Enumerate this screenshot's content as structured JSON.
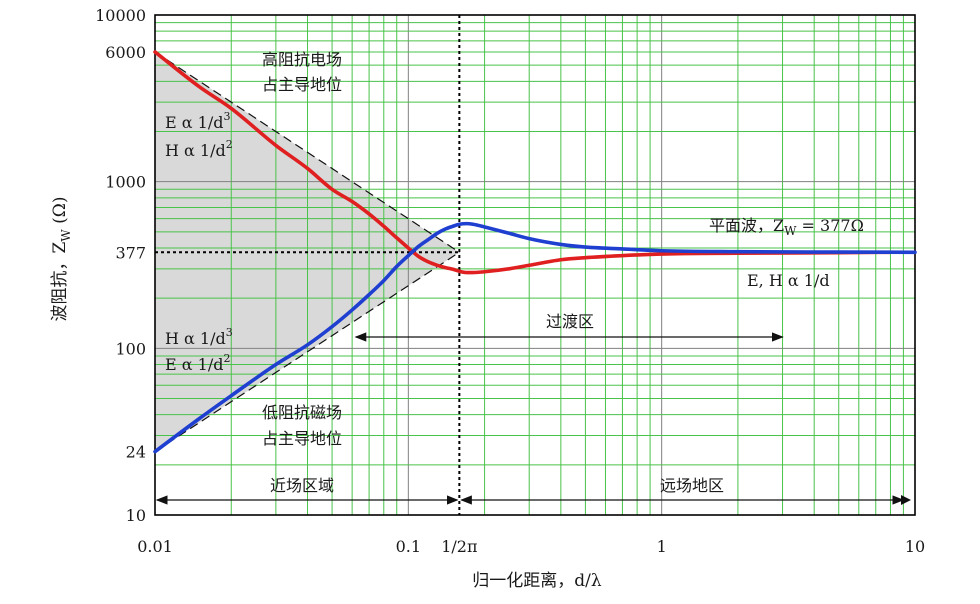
{
  "chart_data": {
    "type": "line",
    "x_scale": "log",
    "y_scale": "log",
    "xlim": [
      0.01,
      10
    ],
    "ylim": [
      10,
      10000
    ],
    "grid": true,
    "xlabel": "归一化距离，d/λ",
    "ylabel_main": "波阻抗，Z",
    "ylabel_sub": "W",
    "ylabel_tail": " (Ω)",
    "x_ticks": [
      {
        "value": 0.01,
        "label": "0.01"
      },
      {
        "value": 0.1,
        "label": "0.1"
      },
      {
        "value": 0.159,
        "label": "1/2π"
      },
      {
        "value": 1,
        "label": "1"
      },
      {
        "value": 10,
        "label": "10"
      }
    ],
    "y_ticks": [
      {
        "value": 10,
        "label": "10"
      },
      {
        "value": 24,
        "label": "24"
      },
      {
        "value": 100,
        "label": "100"
      },
      {
        "value": 377,
        "label": "377"
      },
      {
        "value": 1000,
        "label": "1000"
      },
      {
        "value": 6000,
        "label": "6000"
      },
      {
        "value": 10000,
        "label": "10000"
      }
    ],
    "series": [
      {
        "color": "#e02020",
        "x": [
          0.01,
          0.015,
          0.02,
          0.03,
          0.04,
          0.05,
          0.06,
          0.07,
          0.08,
          0.09,
          0.1,
          0.11,
          0.12,
          0.13,
          0.14,
          0.15,
          0.159,
          0.17,
          0.18,
          0.2,
          0.25,
          0.3,
          0.4,
          0.5,
          0.7,
          1,
          2,
          5,
          8
        ],
        "values": [
          6000,
          3700,
          2750,
          1650,
          1200,
          900,
          760,
          640,
          540,
          460,
          400,
          355,
          330,
          315,
          305,
          298,
          290,
          285,
          285,
          288,
          300,
          315,
          340,
          350,
          360,
          368,
          372,
          375,
          377
        ]
      },
      {
        "color": "#1f3fd0",
        "x": [
          0.01,
          0.015,
          0.02,
          0.03,
          0.04,
          0.05,
          0.06,
          0.07,
          0.08,
          0.09,
          0.1,
          0.11,
          0.12,
          0.13,
          0.14,
          0.15,
          0.159,
          0.17,
          0.18,
          0.2,
          0.25,
          0.3,
          0.4,
          0.5,
          0.7,
          1,
          2,
          5,
          10
        ],
        "values": [
          24,
          38,
          52,
          80,
          105,
          135,
          170,
          210,
          255,
          310,
          360,
          410,
          450,
          490,
          520,
          540,
          555,
          560,
          555,
          535,
          490,
          455,
          420,
          405,
          395,
          385,
          380,
          378,
          377
        ]
      }
    ],
    "asymptote_lines": [
      {
        "x": [
          0.01,
          0.159
        ],
        "values": [
          6000,
          377
        ]
      },
      {
        "x": [
          0.01,
          0.159
        ],
        "values": [
          24,
          377
        ]
      }
    ],
    "reference_lines": {
      "vertical_x": 0.159,
      "horizontal_y": 377
    },
    "annotations": {
      "high_impedance": [
        "高阻抗电场",
        "占主导地位"
      ],
      "low_impedance": [
        "低阻抗磁场",
        "占主导地位"
      ],
      "upper_e": {
        "main": "E α 1/d",
        "sup": "3"
      },
      "upper_h": {
        "main": "H α 1/d",
        "sup": "2"
      },
      "lower_h": {
        "main": "H α 1/d",
        "sup": "3"
      },
      "lower_e": {
        "main": "E α 1/d",
        "sup": "2"
      },
      "plane_wave_main": "平面波，Z",
      "plane_wave_sub": "W",
      "plane_wave_tail": " = 377Ω",
      "far_relation": "E, H α 1/d",
      "transition": "过渡区",
      "near_field": "近场区域",
      "far_field": "远场地区"
    },
    "colors": {
      "grid_green": "#49c349",
      "shade": "#d9d9d9",
      "e_field": "#e02020",
      "h_field": "#1f3fd0"
    }
  }
}
